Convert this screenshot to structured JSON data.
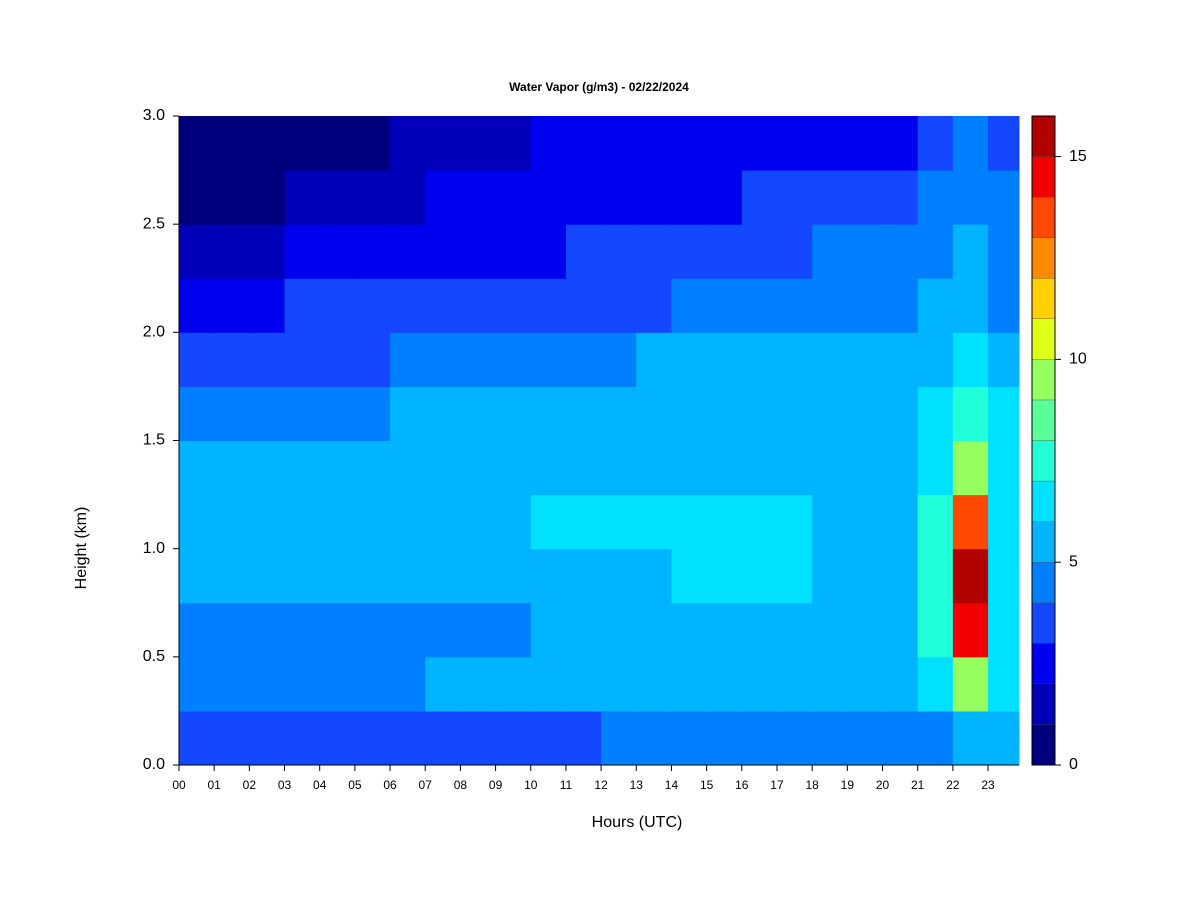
{
  "chart_data": {
    "type": "heatmap",
    "title": "Water Vapor (g/m3) - 02/22/2024",
    "x_label": "Hours (UTC)",
    "y_label": "Height (km)",
    "x": [
      0,
      1,
      2,
      3,
      4,
      5,
      6,
      7,
      8,
      9,
      10,
      11,
      12,
      13,
      14,
      15,
      16,
      17,
      18,
      19,
      20,
      21,
      22,
      23
    ],
    "y": [
      0,
      0.25,
      0.5,
      0.75,
      1.0,
      1.25,
      1.5,
      1.75,
      2.0,
      2.25,
      2.5,
      2.75
    ],
    "z": [
      [
        3.5,
        3.5,
        3.5,
        3.5,
        3.5,
        3.5,
        3.5,
        3.5,
        3.5,
        3.5,
        3.5,
        3.5,
        4.5,
        4.5,
        4.5,
        4.5,
        4.5,
        4.5,
        4.5,
        4.5,
        4.5,
        4.8,
        5.5,
        5.6
      ],
      [
        4.5,
        4.5,
        4.5,
        4.5,
        4.5,
        4.5,
        4.5,
        5,
        5,
        5,
        5.5,
        5.5,
        5.5,
        5.5,
        5.5,
        5.5,
        5.5,
        5.5,
        5.5,
        5.5,
        5.5,
        6,
        9,
        6
      ],
      [
        4.5,
        4.5,
        4.5,
        4.5,
        4.5,
        4.5,
        4.5,
        4.5,
        4.5,
        4.5,
        5.5,
        5.5,
        5.5,
        5.5,
        5.5,
        5.5,
        5.5,
        5.5,
        5.5,
        5.5,
        5.5,
        7,
        14.5,
        6
      ],
      [
        5.3,
        5.3,
        5.3,
        5.3,
        5.3,
        5.3,
        5.3,
        5.3,
        5.3,
        5.3,
        5.8,
        5.8,
        5.8,
        5.8,
        6.3,
        6.3,
        6.3,
        6.3,
        5.8,
        5.8,
        5.8,
        7,
        15.2,
        6.3
      ],
      [
        5.3,
        5.3,
        5.3,
        5.3,
        5.3,
        5.3,
        5.3,
        5.3,
        5.3,
        5.3,
        6,
        6,
        6,
        6,
        6,
        6,
        6,
        6,
        5.6,
        5.6,
        5.6,
        7,
        13.5,
        6.5
      ],
      [
        5.2,
        5.2,
        5.2,
        5.2,
        5.5,
        5.5,
        5.5,
        5.5,
        5.5,
        5.5,
        5.5,
        5.5,
        5.5,
        5.5,
        5.5,
        5.5,
        5.5,
        5.5,
        5.5,
        5.5,
        5.5,
        6.5,
        9.5,
        6.3
      ],
      [
        4.3,
        4.3,
        4.3,
        4.6,
        4.6,
        4.6,
        5.2,
        5.2,
        5.2,
        5.2,
        5.2,
        5.2,
        5.2,
        5.2,
        5.2,
        5.2,
        5.2,
        5.2,
        5.2,
        5.2,
        5.2,
        6,
        7,
        6
      ],
      [
        3.5,
        3.5,
        3.5,
        3.7,
        3.7,
        3.7,
        4.5,
        4.5,
        4.5,
        4.5,
        4.5,
        4.5,
        4.5,
        5,
        5,
        5,
        5,
        5,
        5,
        5,
        5,
        5.5,
        6.2,
        5.5
      ],
      [
        2.5,
        2.5,
        2.5,
        3.3,
        3.3,
        3.3,
        3.3,
        3.7,
        3.7,
        3.7,
        3.7,
        3.7,
        3.7,
        3.7,
        4.5,
        4.5,
        4.5,
        4.5,
        4.7,
        4.7,
        4.7,
        5,
        5.6,
        4.8
      ],
      [
        1.5,
        1.5,
        1.5,
        2.5,
        2.5,
        2.5,
        2.5,
        2.5,
        2.5,
        2.5,
        2.5,
        3.5,
        3.5,
        3.5,
        3.5,
        3.5,
        3.5,
        3.5,
        4.3,
        4.3,
        4.3,
        4.5,
        5.2,
        4.5
      ],
      [
        0.8,
        0.8,
        0.8,
        1.5,
        1.5,
        1.5,
        1.5,
        2.5,
        2.5,
        2.5,
        2.5,
        2.5,
        2.5,
        2.5,
        2.5,
        2.5,
        3.3,
        3.3,
        3.3,
        3.3,
        3.5,
        4.3,
        4.6,
        4.2
      ],
      [
        0.7,
        0.7,
        0.7,
        0.7,
        0.7,
        0.7,
        1.5,
        1.5,
        1.5,
        1.5,
        2.5,
        2.5,
        2.5,
        2.5,
        2.5,
        2.5,
        2.5,
        2.5,
        2.5,
        2.5,
        2.7,
        3.5,
        4.5,
        3.5
      ]
    ],
    "xlim": [
      0,
      23.88
    ],
    "ylim": [
      0,
      3.0
    ],
    "xticks": [
      {
        "value": 0,
        "label": "00"
      },
      {
        "value": 1,
        "label": "01"
      },
      {
        "value": 2,
        "label": "02"
      },
      {
        "value": 3,
        "label": "03"
      },
      {
        "value": 4,
        "label": "04"
      },
      {
        "value": 5,
        "label": "05"
      },
      {
        "value": 6,
        "label": "06"
      },
      {
        "value": 7,
        "label": "07"
      },
      {
        "value": 8,
        "label": "08"
      },
      {
        "value": 9,
        "label": "09"
      },
      {
        "value": 10,
        "label": "10"
      },
      {
        "value": 11,
        "label": "11"
      },
      {
        "value": 12,
        "label": "12"
      },
      {
        "value": 13,
        "label": "13"
      },
      {
        "value": 14,
        "label": "14"
      },
      {
        "value": 15,
        "label": "15"
      },
      {
        "value": 16,
        "label": "16"
      },
      {
        "value": 17,
        "label": "17"
      },
      {
        "value": 18,
        "label": "18"
      },
      {
        "value": 19,
        "label": "19"
      },
      {
        "value": 20,
        "label": "20"
      },
      {
        "value": 21,
        "label": "21"
      },
      {
        "value": 22,
        "label": "22"
      },
      {
        "value": 23,
        "label": "23"
      }
    ],
    "yticks": [
      {
        "value": 0,
        "label": "0.0"
      },
      {
        "value": 0.5,
        "label": "0.5"
      },
      {
        "value": 1.0,
        "label": "1.0"
      },
      {
        "value": 1.5,
        "label": "1.5"
      },
      {
        "value": 2.0,
        "label": "2.0"
      },
      {
        "value": 2.5,
        "label": "2.5"
      },
      {
        "value": 3.0,
        "label": "3.0"
      }
    ],
    "zlim": [
      0,
      16
    ],
    "zticks": [
      0,
      5,
      10,
      15
    ],
    "colors": [
      "#00007f",
      "#0000b8",
      "#0000f0",
      "#1448ff",
      "#0080ff",
      "#00b4ff",
      "#00e0ff",
      "#20ffd8",
      "#5aff9a",
      "#96ff60",
      "#e0ff16",
      "#ffd000",
      "#ff8a00",
      "#ff4800",
      "#f00000",
      "#b00000"
    ]
  }
}
